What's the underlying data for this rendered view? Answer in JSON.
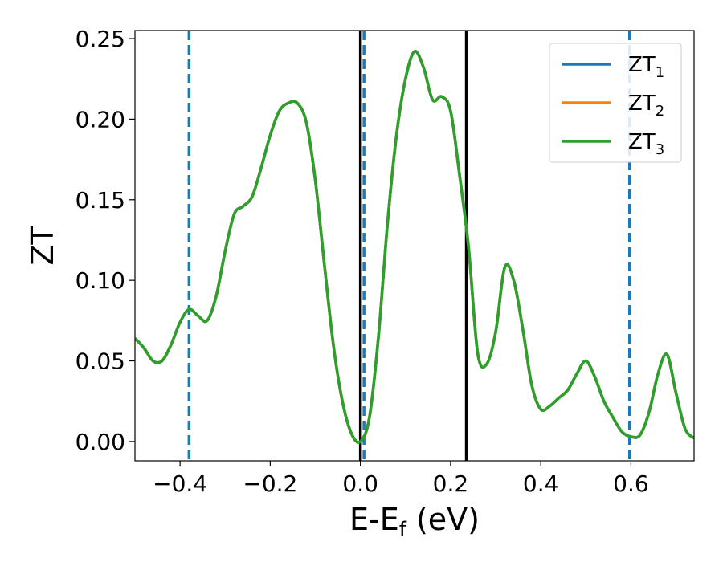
{
  "chart_data": {
    "type": "line",
    "xlabel": "E-E",
    "xlabel_sub": "f",
    "xlabel_unit": " (eV)",
    "ylabel": "ZT",
    "xlim": [
      -0.5,
      0.74
    ],
    "ylim": [
      -0.012,
      0.255
    ],
    "x_ticks": [
      -0.4,
      -0.2,
      0.0,
      0.2,
      0.4,
      0.6
    ],
    "x_tick_labels": [
      "−0.4",
      "−0.2",
      "0.0",
      "0.2",
      "0.4",
      "0.6"
    ],
    "y_ticks": [
      0.0,
      0.05,
      0.1,
      0.15,
      0.2,
      0.25
    ],
    "y_tick_labels": [
      "0.00",
      "0.05",
      "0.10",
      "0.15",
      "0.20",
      "0.25"
    ],
    "grid": false,
    "legend_position": "top-right",
    "series": [
      {
        "name": "ZT",
        "sub": "1",
        "color": "#1f77b4",
        "x": [
          -0.5,
          -0.48,
          -0.46,
          -0.44,
          -0.42,
          -0.4,
          -0.38,
          -0.36,
          -0.34,
          -0.32,
          -0.3,
          -0.28,
          -0.26,
          -0.24,
          -0.22,
          -0.2,
          -0.18,
          -0.16,
          -0.14,
          -0.12,
          -0.1,
          -0.08,
          -0.06,
          -0.04,
          -0.02,
          0.0,
          0.02,
          0.04,
          0.06,
          0.08,
          0.1,
          0.12,
          0.14,
          0.16,
          0.18,
          0.2,
          0.22,
          0.24,
          0.26,
          0.28,
          0.3,
          0.32,
          0.34,
          0.36,
          0.38,
          0.4,
          0.42,
          0.44,
          0.46,
          0.48,
          0.5,
          0.52,
          0.54,
          0.56,
          0.58,
          0.6,
          0.62,
          0.64,
          0.66,
          0.68,
          0.7,
          0.72,
          0.74
        ],
        "y": [
          0.064,
          0.058,
          0.05,
          0.05,
          0.06,
          0.074,
          0.082,
          0.078,
          0.075,
          0.09,
          0.118,
          0.141,
          0.146,
          0.152,
          0.17,
          0.19,
          0.205,
          0.21,
          0.21,
          0.198,
          0.162,
          0.11,
          0.06,
          0.025,
          0.005,
          0.0,
          0.015,
          0.065,
          0.135,
          0.19,
          0.225,
          0.242,
          0.232,
          0.212,
          0.214,
          0.205,
          0.165,
          0.12,
          0.055,
          0.048,
          0.068,
          0.108,
          0.1,
          0.07,
          0.035,
          0.02,
          0.022,
          0.027,
          0.032,
          0.042,
          0.05,
          0.04,
          0.025,
          0.015,
          0.006,
          0.003,
          0.004,
          0.018,
          0.042,
          0.054,
          0.03,
          0.008,
          0.002
        ]
      },
      {
        "name": "ZT",
        "sub": "2",
        "color": "#ff7f0e",
        "x": [
          -0.5,
          -0.48,
          -0.46,
          -0.44,
          -0.42,
          -0.4,
          -0.38,
          -0.36,
          -0.34,
          -0.32,
          -0.3,
          -0.28,
          -0.26,
          -0.24,
          -0.22,
          -0.2,
          -0.18,
          -0.16,
          -0.14,
          -0.12,
          -0.1,
          -0.08,
          -0.06,
          -0.04,
          -0.02,
          0.0,
          0.02,
          0.04,
          0.06,
          0.08,
          0.1,
          0.12,
          0.14,
          0.16,
          0.18,
          0.2,
          0.22,
          0.24,
          0.26,
          0.28,
          0.3,
          0.32,
          0.34,
          0.36,
          0.38,
          0.4,
          0.42,
          0.44,
          0.46,
          0.48,
          0.5,
          0.52,
          0.54,
          0.56,
          0.58,
          0.6,
          0.62,
          0.64,
          0.66,
          0.68,
          0.7,
          0.72,
          0.74
        ],
        "y": [
          0.064,
          0.058,
          0.05,
          0.05,
          0.06,
          0.074,
          0.082,
          0.078,
          0.075,
          0.09,
          0.118,
          0.141,
          0.146,
          0.152,
          0.17,
          0.19,
          0.205,
          0.21,
          0.21,
          0.198,
          0.162,
          0.11,
          0.06,
          0.025,
          0.005,
          0.0,
          0.015,
          0.065,
          0.135,
          0.19,
          0.225,
          0.242,
          0.232,
          0.212,
          0.214,
          0.205,
          0.165,
          0.12,
          0.055,
          0.048,
          0.068,
          0.108,
          0.1,
          0.07,
          0.035,
          0.02,
          0.022,
          0.027,
          0.032,
          0.042,
          0.05,
          0.04,
          0.025,
          0.015,
          0.006,
          0.003,
          0.004,
          0.018,
          0.042,
          0.054,
          0.03,
          0.008,
          0.002
        ]
      },
      {
        "name": "ZT",
        "sub": "3",
        "color": "#2ca02c",
        "x": [
          -0.5,
          -0.48,
          -0.46,
          -0.44,
          -0.42,
          -0.4,
          -0.38,
          -0.36,
          -0.34,
          -0.32,
          -0.3,
          -0.28,
          -0.26,
          -0.24,
          -0.22,
          -0.2,
          -0.18,
          -0.16,
          -0.14,
          -0.12,
          -0.1,
          -0.08,
          -0.06,
          -0.04,
          -0.02,
          0.0,
          0.02,
          0.04,
          0.06,
          0.08,
          0.1,
          0.12,
          0.14,
          0.16,
          0.18,
          0.2,
          0.22,
          0.24,
          0.26,
          0.28,
          0.3,
          0.32,
          0.34,
          0.36,
          0.38,
          0.4,
          0.42,
          0.44,
          0.46,
          0.48,
          0.5,
          0.52,
          0.54,
          0.56,
          0.58,
          0.6,
          0.62,
          0.64,
          0.66,
          0.68,
          0.7,
          0.72,
          0.74
        ],
        "y": [
          0.064,
          0.058,
          0.05,
          0.05,
          0.06,
          0.074,
          0.082,
          0.078,
          0.075,
          0.09,
          0.118,
          0.141,
          0.146,
          0.152,
          0.17,
          0.19,
          0.205,
          0.21,
          0.21,
          0.198,
          0.162,
          0.11,
          0.06,
          0.025,
          0.005,
          0.0,
          0.015,
          0.065,
          0.135,
          0.19,
          0.225,
          0.242,
          0.232,
          0.212,
          0.214,
          0.205,
          0.165,
          0.12,
          0.055,
          0.048,
          0.068,
          0.108,
          0.1,
          0.07,
          0.035,
          0.02,
          0.022,
          0.027,
          0.032,
          0.042,
          0.05,
          0.04,
          0.025,
          0.015,
          0.006,
          0.003,
          0.004,
          0.018,
          0.042,
          0.054,
          0.03,
          0.008,
          0.002
        ]
      }
    ],
    "vlines": [
      {
        "x": 0.0,
        "style": "solid",
        "color": "#000000"
      },
      {
        "x": 0.235,
        "style": "solid",
        "color": "#000000"
      },
      {
        "x": -0.38,
        "style": "dashed",
        "color": "#1f77b4"
      },
      {
        "x": 0.008,
        "style": "dashed",
        "color": "#1f77b4"
      },
      {
        "x": 0.597,
        "style": "dashed",
        "color": "#1f77b4"
      }
    ]
  }
}
